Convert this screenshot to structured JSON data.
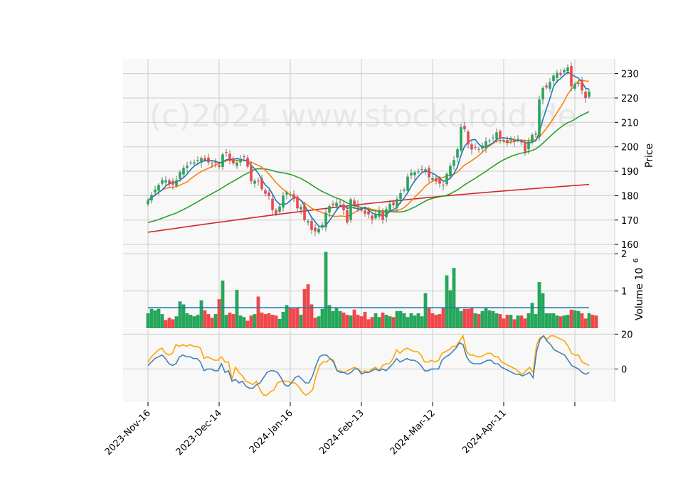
{
  "watermark": "(c)2024 www.stockdroid.de",
  "colors": {
    "up": "#26a65b",
    "down": "#f0474b",
    "ma_short": "#1f77b4",
    "ma_mid": "#ff7f0e",
    "ma_long": "#2ca02c",
    "ma_vlong": "#d62728",
    "volume_ma": "#1f77b4",
    "osc_a": "#ffa500",
    "osc_b": "#4682b4",
    "grid": "#cccccc",
    "panel_bg": "#f8f8f8"
  },
  "chart_data": [
    {
      "type": "candlestick",
      "panel": "price",
      "ylabel": "Price",
      "ylim": [
        158,
        236
      ],
      "yticks": [
        160,
        170,
        180,
        190,
        200,
        210,
        220,
        230
      ],
      "x_tick_labels": [
        "2023-Nov-16",
        "2023-Dec-14",
        "2024-Jan-16",
        "2024-Feb-13",
        "2024-Mar-12",
        "2024-Apr-11"
      ],
      "close": [
        178.0,
        180.3,
        182.5,
        184.4,
        186.4,
        186.3,
        185.0,
        184.5,
        186.4,
        189.7,
        191.4,
        192.3,
        193.6,
        193.6,
        194.5,
        195.4,
        194.6,
        193.6,
        193.5,
        193.5,
        191.8,
        196.9,
        197.6,
        194.8,
        193.2,
        193.6,
        195.1,
        196.0,
        191.9,
        185.9,
        186.1,
        186.0,
        182.7,
        180.8,
        179.8,
        174.1,
        172.4,
        175.6,
        180.0,
        181.3,
        180.6,
        178.6,
        174.8,
        175.4,
        170.0,
        169.6,
        165.9,
        165.4,
        166.5,
        168.0,
        173.0,
        175.7,
        176.2,
        177.1,
        177.4,
        174.0,
        169.0,
        178.5,
        176.1,
        175.4,
        173.9,
        172.6,
        172.3,
        170.3,
        172.4,
        174.0,
        170.1,
        174.5,
        176.7,
        176.1,
        178.6,
        181.0,
        182.5,
        187.8,
        189.4,
        189.6,
        189.9,
        190.5,
        190.8,
        187.5,
        187.2,
        185.8,
        184.9,
        184.2,
        188.9,
        192.2,
        194.6,
        199.0,
        208.1,
        207.2,
        201.0,
        198.9,
        199.6,
        198.8,
        200.6,
        202.3,
        202.6,
        203.8,
        205.9,
        203.3,
        202.8,
        201.6,
        203.6,
        202.1,
        203.2,
        201.8,
        198.0,
        202.2,
        204.9,
        205.0,
        219.4,
        224.1,
        224.3,
        226.5,
        229.2,
        230.3,
        229.5,
        231.5,
        232.6,
        224.8,
        225.8,
        226.2,
        223.1,
        220.0,
        222.7
      ]
    },
    {
      "type": "line",
      "panel": "price",
      "series": []
    },
    {
      "type": "bar",
      "panel": "volume",
      "ylabel": "Volume  10",
      "ylabel_exponent": "6",
      "ylim": [
        0,
        2.1
      ],
      "yticks": [
        1,
        2
      ],
      "values": [
        0.4,
        0.52,
        0.48,
        0.52,
        0.38,
        0.22,
        0.28,
        0.24,
        0.32,
        0.72,
        0.64,
        0.4,
        0.36,
        0.32,
        0.36,
        0.75,
        0.48,
        0.38,
        0.28,
        0.38,
        0.78,
        1.28,
        0.36,
        0.42,
        0.38,
        1.03,
        0.34,
        0.3,
        0.2,
        0.34,
        0.38,
        0.85,
        0.42,
        0.38,
        0.4,
        0.36,
        0.34,
        0.25,
        0.44,
        0.62,
        0.56,
        0.53,
        0.56,
        0.36,
        1.05,
        1.18,
        0.64,
        0.28,
        0.32,
        0.52,
        2.05,
        0.62,
        0.46,
        0.56,
        0.46,
        0.42,
        0.36,
        0.34,
        0.5,
        0.36,
        0.32,
        0.44,
        0.24,
        0.3,
        0.4,
        0.3,
        0.42,
        0.36,
        0.32,
        0.3,
        0.46,
        0.46,
        0.4,
        0.3,
        0.4,
        0.34,
        0.4,
        0.32,
        0.94,
        0.56,
        0.4,
        0.36,
        0.38,
        0.56,
        1.42,
        1.02,
        1.62,
        0.56,
        0.46,
        0.52,
        0.52,
        0.56,
        0.4,
        0.38,
        0.46,
        0.54,
        0.48,
        0.46,
        0.4,
        0.38,
        0.26,
        0.36,
        0.36,
        0.24,
        0.34,
        0.34,
        0.26,
        0.4,
        0.68,
        0.38,
        1.24,
        0.94,
        0.4,
        0.4,
        0.4,
        0.34,
        0.32,
        0.34,
        0.36,
        0.5,
        0.48,
        0.46,
        0.4,
        0.26,
        0.4,
        0.36,
        0.34
      ],
      "ma_value": 0.55
    },
    {
      "type": "line",
      "panel": "oscillator",
      "ylim": [
        -19,
        23
      ],
      "yticks": [
        0,
        20
      ],
      "series": [
        {
          "color_key": "osc_a",
          "values": [
            4,
            7,
            9,
            11,
            12,
            9,
            8,
            9,
            14,
            13,
            14,
            13,
            14,
            13,
            13,
            12,
            6,
            7,
            6,
            5,
            5,
            7,
            4,
            4,
            -6,
            1,
            -2,
            -4,
            -7,
            -8,
            -9,
            -7,
            -12,
            -15,
            -15,
            -13,
            -12,
            -8,
            -7,
            -7,
            -7,
            -8,
            -8,
            -10,
            -13,
            -15,
            -14,
            -12,
            -4,
            2,
            4,
            4,
            6,
            5,
            -1,
            -1,
            -2,
            -1,
            0,
            1,
            0,
            -2,
            -1,
            -2,
            0,
            1,
            -1,
            2,
            3,
            3,
            6,
            11,
            9,
            11,
            12,
            11,
            10,
            10,
            8,
            4,
            4,
            5,
            4,
            5,
            9,
            10,
            11,
            13,
            13,
            16,
            19,
            10,
            8,
            8,
            7,
            7,
            8,
            9,
            9,
            7,
            7,
            4,
            3,
            2,
            1,
            0,
            -2,
            -3,
            -1,
            1,
            -2,
            14,
            18,
            19,
            17,
            19,
            19,
            18,
            17,
            16,
            13,
            9,
            8,
            8,
            4,
            3,
            2
          ]
        },
        {
          "color_key": "osc_b",
          "values": [
            2,
            4,
            6,
            7,
            8,
            6,
            3,
            2,
            3,
            7,
            8,
            7,
            7,
            6,
            6,
            4,
            -1,
            0,
            0,
            -1,
            -1,
            3,
            -2,
            -1,
            -7,
            -6,
            -8,
            -7,
            -10,
            -11,
            -11,
            -9,
            -8,
            -5,
            -2,
            -1,
            -1,
            -2,
            -5,
            -9,
            -10,
            -8,
            -5,
            -4,
            -6,
            -8,
            -8,
            -4,
            2,
            7,
            8,
            8,
            6,
            4,
            -1,
            -2,
            -2,
            -3,
            -2,
            0,
            0,
            -3,
            -2,
            -2,
            -1,
            0,
            -1,
            0,
            -1,
            1,
            3,
            6,
            4,
            5,
            6,
            5,
            5,
            4,
            2,
            -1,
            -1,
            0,
            0,
            0,
            5,
            7,
            8,
            10,
            12,
            15,
            14,
            7,
            4,
            3,
            3,
            3,
            4,
            5,
            5,
            3,
            3,
            1,
            0,
            -1,
            -2,
            -3,
            -3,
            -4,
            -3,
            -2,
            -5,
            10,
            17,
            19,
            16,
            14,
            11,
            10,
            9,
            8,
            5,
            2,
            1,
            0,
            -2,
            -3,
            -2
          ]
        }
      ]
    }
  ]
}
